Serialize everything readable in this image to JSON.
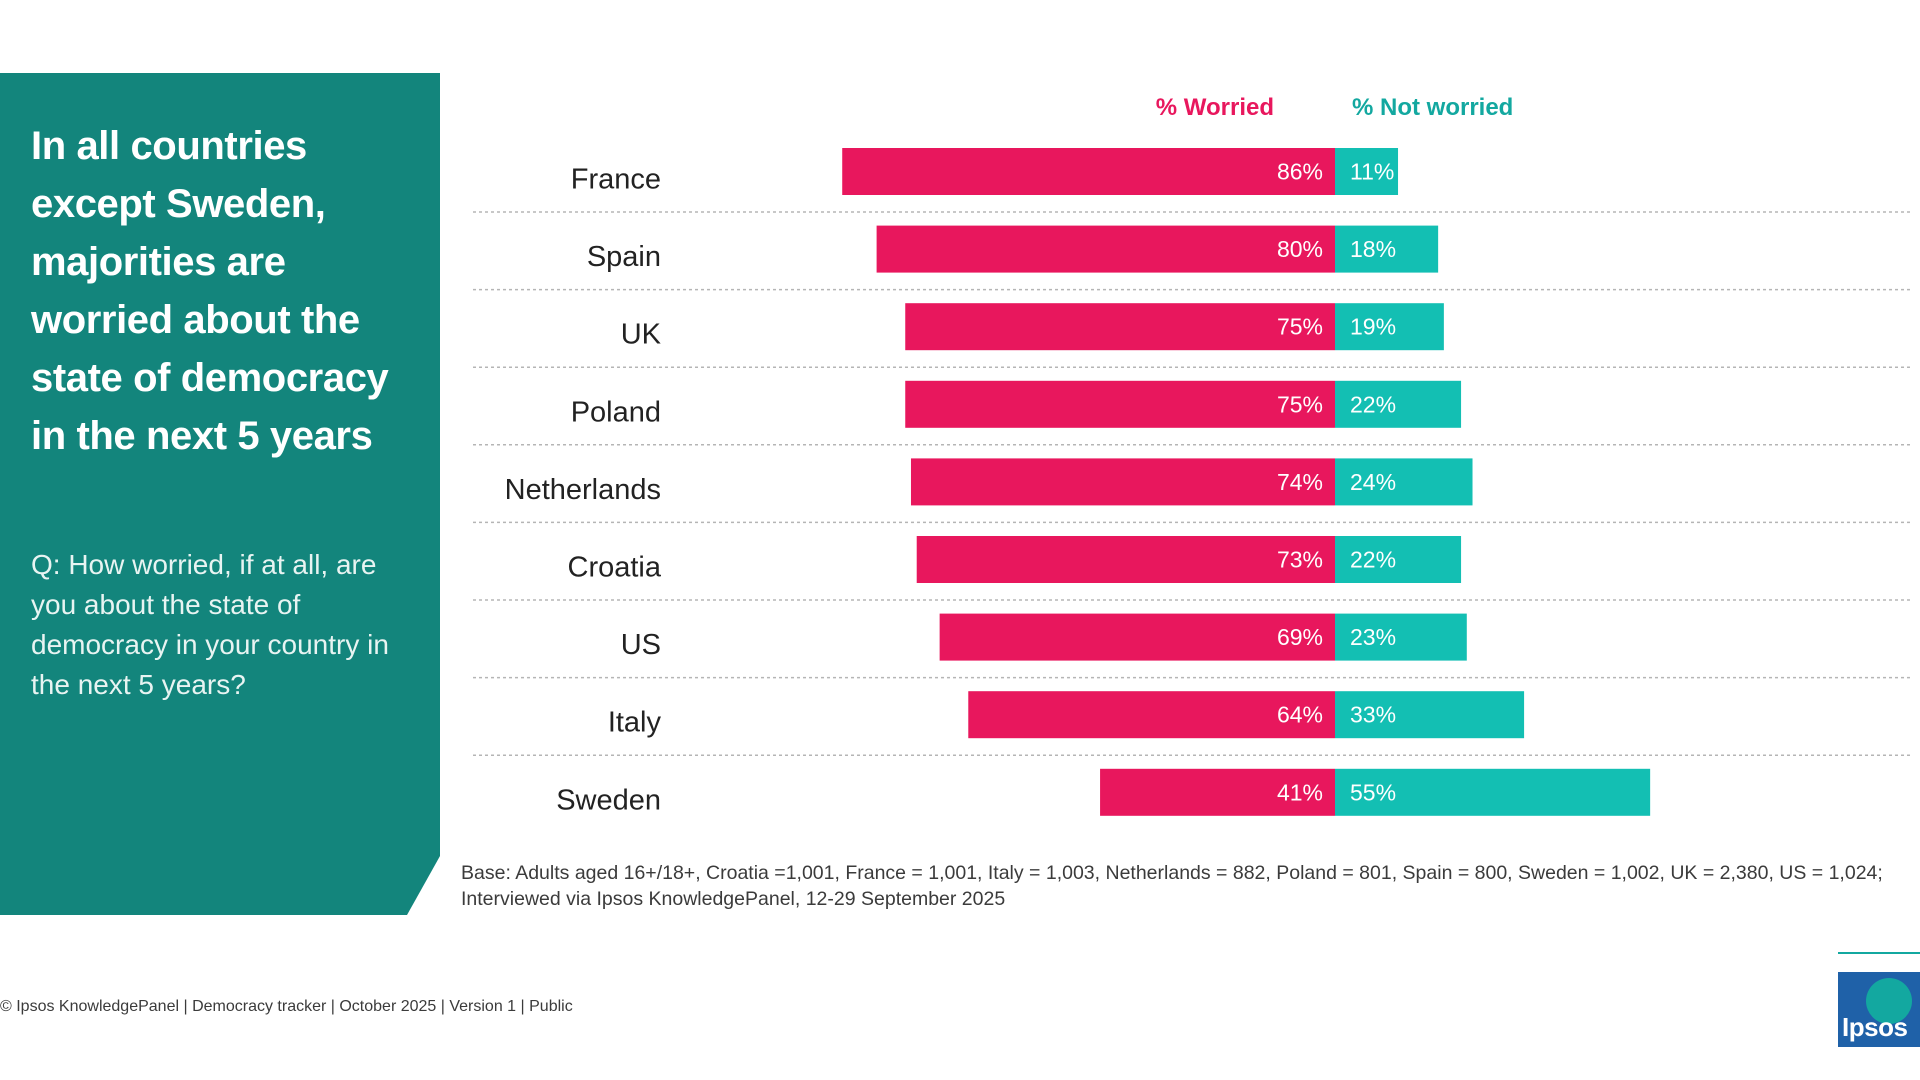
{
  "panel": {
    "title": "In all countries except Sweden, majorities are worried about the state of democracy in the next 5 years",
    "question": "Q: How worried, if at all, are you about the state of democracy in your country in the next 5 years?"
  },
  "legend": {
    "worried": "% Worried",
    "not_worried": "% Not worried"
  },
  "chart_data": {
    "type": "bar",
    "orientation": "horizontal-diverging",
    "categories": [
      "France",
      "Spain",
      "UK",
      "Poland",
      "Netherlands",
      "Croatia",
      "US",
      "Italy",
      "Sweden"
    ],
    "series": [
      {
        "name": "% Worried",
        "values": [
          86,
          80,
          75,
          75,
          74,
          73,
          69,
          64,
          41
        ],
        "color": "#e8175d"
      },
      {
        "name": "% Not worried",
        "values": [
          11,
          18,
          19,
          22,
          24,
          22,
          23,
          33,
          55
        ],
        "color": "#13bfb3"
      }
    ],
    "value_suffix": "%"
  },
  "base_note": {
    "line1": "Base: Adults aged 16+/18+, Croatia =1,001, France = 1,001, Italy = 1,003, Netherlands = 882, Poland = 801, Spain = 800, Sweden = 1,002, UK = 2,380, US = 1,024;",
    "line2": "Interviewed via Ipsos KnowledgePanel, 12-29 September 2025"
  },
  "footer": "© Ipsos KnowledgePanel | Democracy tracker | October 2025 | Version 1 | Public",
  "logo": "Ipsos"
}
